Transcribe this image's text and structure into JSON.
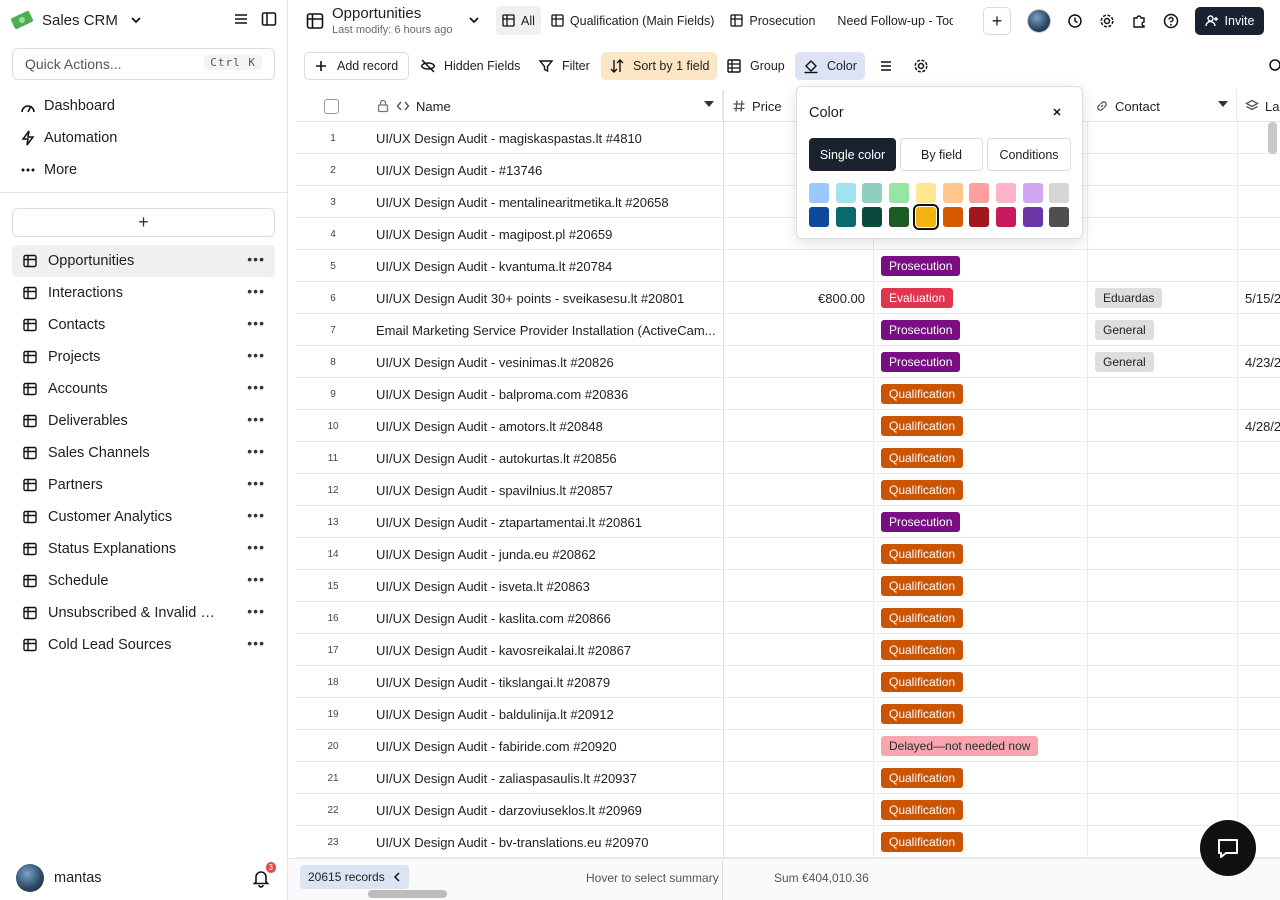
{
  "app": {
    "name": "Sales CRM"
  },
  "quick_actions": {
    "placeholder": "Quick Actions...",
    "shortcut": "Ctrl K"
  },
  "nav": [
    {
      "label": "Dashboard",
      "icon": "dashboard-icon"
    },
    {
      "label": "Automation",
      "icon": "automation-icon"
    },
    {
      "label": "More",
      "icon": "more-icon"
    }
  ],
  "tables": [
    {
      "label": "Opportunities",
      "active": true
    },
    {
      "label": "Interactions"
    },
    {
      "label": "Contacts"
    },
    {
      "label": "Projects"
    },
    {
      "label": "Accounts"
    },
    {
      "label": "Deliverables"
    },
    {
      "label": "Sales Channels"
    },
    {
      "label": "Partners"
    },
    {
      "label": "Customer Analytics"
    },
    {
      "label": "Status Explanations"
    },
    {
      "label": "Schedule"
    },
    {
      "label": "Unsubscribed & Invalid E..."
    },
    {
      "label": "Cold Lead Sources"
    }
  ],
  "user": {
    "name": "mantas",
    "notifications": "3"
  },
  "header": {
    "title": "Opportunities",
    "subtitle": "Last modify: 6 hours ago",
    "views": [
      {
        "label": "All",
        "active": true
      },
      {
        "label": "Qualification (Main Fields)"
      },
      {
        "label": "Prosecution"
      },
      {
        "label": "Need Follow-up - Today"
      }
    ],
    "invite_label": "Invite"
  },
  "toolbar": {
    "add_record": "Add record",
    "hidden_fields": "Hidden Fields",
    "filter": "Filter",
    "sort": "Sort by 1 field",
    "group": "Group",
    "color": "Color"
  },
  "columns": {
    "name": "Name",
    "price": "Price",
    "contact": "Contact",
    "last": "La"
  },
  "colors": {
    "Prosecution": "#7a0f84",
    "Evaluation": "#e3344f",
    "Qualification": "#c95403",
    "Delayed—not needed now": "#f7a6b0",
    "accent": "#1a2230"
  },
  "rows": [
    {
      "n": "1",
      "name": "UI/UX Design Audit - magiskaspastas.lt #4810",
      "price": "",
      "status": "",
      "contact": "",
      "last": ""
    },
    {
      "n": "2",
      "name": "UI/UX Design Audit -  #13746",
      "price": "",
      "status": "",
      "contact": "",
      "last": ""
    },
    {
      "n": "3",
      "name": "UI/UX Design Audit - mentalinearitmetika.lt #20658",
      "price": "",
      "status": "",
      "contact": "",
      "last": ""
    },
    {
      "n": "4",
      "name": "UI/UX Design Audit - magipost.pl #20659",
      "price": "",
      "status": "",
      "contact": "",
      "last": ""
    },
    {
      "n": "5",
      "name": "UI/UX Design Audit - kvantuma.lt #20784",
      "price": "",
      "status": "Prosecution",
      "contact": "",
      "last": ""
    },
    {
      "n": "6",
      "name": "UI/UX Design Audit 30+ points - sveikasesu.lt #20801",
      "price": "€800.00",
      "status": "Evaluation",
      "contact": "Eduardas",
      "last": "5/15/2"
    },
    {
      "n": "7",
      "name": "Email Marketing Service Provider Installation (ActiveCam...",
      "price": "",
      "status": "Prosecution",
      "contact": "General",
      "last": ""
    },
    {
      "n": "8",
      "name": "UI/UX Design Audit - vesinimas.lt #20826",
      "price": "",
      "status": "Prosecution",
      "contact": "General",
      "last": "4/23/2"
    },
    {
      "n": "9",
      "name": "UI/UX Design Audit - balproma.com #20836",
      "price": "",
      "status": "Qualification",
      "contact": "",
      "last": ""
    },
    {
      "n": "10",
      "name": "UI/UX Design Audit - amotors.lt #20848",
      "price": "",
      "status": "Qualification",
      "contact": "",
      "last": "4/28/2"
    },
    {
      "n": "11",
      "name": "UI/UX Design Audit - autokurtas.lt #20856",
      "price": "",
      "status": "Qualification",
      "contact": "",
      "last": ""
    },
    {
      "n": "12",
      "name": "UI/UX Design Audit - spavilnius.lt #20857",
      "price": "",
      "status": "Qualification",
      "contact": "",
      "last": ""
    },
    {
      "n": "13",
      "name": "UI/UX Design Audit - ztapartamentai.lt #20861",
      "price": "",
      "status": "Prosecution",
      "contact": "",
      "last": ""
    },
    {
      "n": "14",
      "name": "UI/UX Design Audit - junda.eu #20862",
      "price": "",
      "status": "Qualification",
      "contact": "",
      "last": ""
    },
    {
      "n": "15",
      "name": "UI/UX Design Audit - isveta.lt #20863",
      "price": "",
      "status": "Qualification",
      "contact": "",
      "last": ""
    },
    {
      "n": "16",
      "name": "UI/UX Design Audit - kaslita.com #20866",
      "price": "",
      "status": "Qualification",
      "contact": "",
      "last": ""
    },
    {
      "n": "17",
      "name": "UI/UX Design Audit - kavosreikalai.lt #20867",
      "price": "",
      "status": "Qualification",
      "contact": "",
      "last": ""
    },
    {
      "n": "18",
      "name": "UI/UX Design Audit - tikslangai.lt #20879",
      "price": "",
      "status": "Qualification",
      "contact": "",
      "last": ""
    },
    {
      "n": "19",
      "name": "UI/UX Design Audit - baldulinija.lt #20912",
      "price": "",
      "status": "Qualification",
      "contact": "",
      "last": ""
    },
    {
      "n": "20",
      "name": "UI/UX Design Audit - fabiride.com #20920",
      "price": "",
      "status": "Delayed—not needed now",
      "contact": "",
      "last": ""
    },
    {
      "n": "21",
      "name": "UI/UX Design Audit - zaliaspasaulis.lt #20937",
      "price": "",
      "status": "Qualification",
      "contact": "",
      "last": ""
    },
    {
      "n": "22",
      "name": "UI/UX Design Audit - darzoviuseklos.lt #20969",
      "price": "",
      "status": "Qualification",
      "contact": "",
      "last": ""
    },
    {
      "n": "23",
      "name": "UI/UX Design Audit - bv-translations.eu #20970",
      "price": "",
      "status": "Qualification",
      "contact": "",
      "last": ""
    }
  ],
  "footer": {
    "records": "20615 records",
    "hover_hint": "Hover to select summary",
    "sum": "Sum €404,010.36"
  },
  "color_popover": {
    "title": "Color",
    "modes": [
      "Single color",
      "By field",
      "Conditions"
    ],
    "active_mode": "Single color",
    "swatches_row1": [
      "#99c9ff",
      "#a1e3ee",
      "#8fcfc0",
      "#95e6a0",
      "#ffe690",
      "#ffc58a",
      "#ff9e9e",
      "#ffb3c6",
      "#d3a6f5",
      "#d6d6d6"
    ],
    "swatches_row2": [
      "#0e4a9b",
      "#0b6a6b",
      "#0a4a3c",
      "#1d5b25",
      "#f5b311",
      "#d65a00",
      "#a1171c",
      "#c9195d",
      "#6c35a4",
      "#4f4f4f"
    ],
    "selected_swatch": "#f5b311"
  }
}
